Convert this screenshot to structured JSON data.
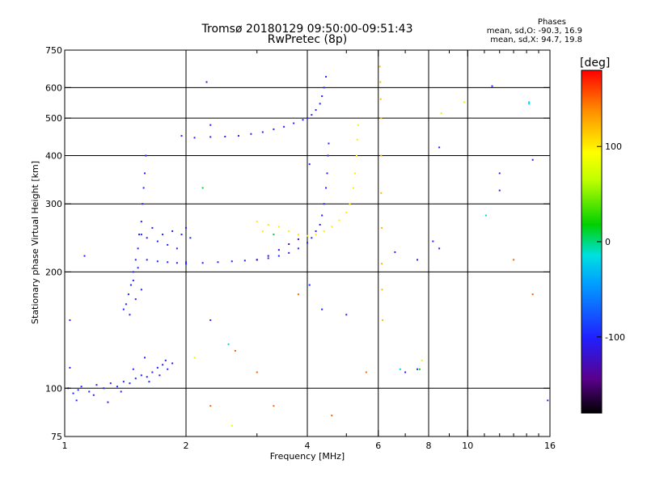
{
  "header": {
    "title_line1": "Tromsø 20180129 09:50:00-09:51:43",
    "title_line2": "RwPretec (8p)",
    "stats_title": "Phases",
    "stats_line1": "mean, sd,O: -90.3, 16.9",
    "stats_line2": "mean, sd,X:  94.7, 19.8"
  },
  "colorbar": {
    "unit": "[deg]",
    "range": [
      -180,
      180
    ],
    "ticks": [
      100,
      0,
      -100
    ],
    "tick_labels": [
      "100",
      "0",
      "-100"
    ]
  },
  "chart_data": {
    "type": "scatter",
    "xscale": "log",
    "yscale": "log",
    "xlabel": "Frequency [MHz]",
    "ylabel": "Stationary phase Virtual Height [km]",
    "xlim": [
      1,
      16
    ],
    "ylim": [
      75,
      750
    ],
    "grid": true,
    "x_ticks": [
      1,
      2,
      4,
      6,
      8,
      10,
      16
    ],
    "x_tick_labels": [
      "1",
      "2",
      "4",
      "6",
      "8",
      "10",
      "16"
    ],
    "y_ticks": [
      75,
      100,
      200,
      300,
      400,
      500,
      600,
      750
    ],
    "y_tick_labels": [
      "75",
      "100",
      "200",
      "300",
      "400",
      "500",
      "600",
      "750"
    ],
    "series": [
      {
        "phase": -100,
        "points": [
          [
            1.02,
            100
          ],
          [
            1.05,
            97
          ],
          [
            1.08,
            99
          ],
          [
            1.1,
            101
          ],
          [
            1.15,
            98
          ],
          [
            1.2,
            102
          ],
          [
            1.25,
            100
          ],
          [
            1.3,
            103
          ],
          [
            1.35,
            101
          ],
          [
            1.4,
            104
          ],
          [
            1.45,
            103
          ],
          [
            1.5,
            106
          ],
          [
            1.55,
            108
          ],
          [
            1.6,
            107
          ],
          [
            1.65,
            110
          ],
          [
            1.7,
            113
          ],
          [
            1.75,
            115
          ],
          [
            1.8,
            112
          ],
          [
            1.85,
            116
          ],
          [
            1.03,
            113
          ],
          [
            1.07,
            93
          ],
          [
            1.18,
            96
          ],
          [
            1.28,
            92
          ],
          [
            1.38,
            98
          ],
          [
            1.48,
            112
          ],
          [
            1.58,
            120
          ],
          [
            1.62,
            104
          ],
          [
            1.72,
            108
          ],
          [
            1.78,
            118
          ]
        ]
      },
      {
        "phase": -100,
        "points": [
          [
            1.4,
            160
          ],
          [
            1.42,
            165
          ],
          [
            1.44,
            175
          ],
          [
            1.46,
            185
          ],
          [
            1.48,
            200
          ],
          [
            1.5,
            215
          ],
          [
            1.52,
            230
          ],
          [
            1.53,
            250
          ],
          [
            1.55,
            270
          ],
          [
            1.56,
            300
          ],
          [
            1.57,
            330
          ],
          [
            1.58,
            360
          ],
          [
            1.59,
            400
          ],
          [
            1.45,
            155
          ],
          [
            1.5,
            170
          ],
          [
            1.55,
            180
          ],
          [
            1.48,
            190
          ],
          [
            1.52,
            205
          ]
        ]
      },
      {
        "phase": -100,
        "points": [
          [
            1.55,
            250
          ],
          [
            1.6,
            245
          ],
          [
            1.7,
            240
          ],
          [
            1.8,
            235
          ],
          [
            1.9,
            230
          ],
          [
            1.95,
            250
          ],
          [
            2.0,
            260
          ],
          [
            2.05,
            245
          ],
          [
            1.65,
            260
          ],
          [
            1.75,
            250
          ],
          [
            1.85,
            255
          ],
          [
            1.6,
            215
          ],
          [
            1.7,
            213
          ],
          [
            1.8,
            212
          ],
          [
            1.9,
            211
          ],
          [
            2.0,
            212
          ]
        ]
      },
      {
        "phase": -100,
        "points": [
          [
            2.0,
            210
          ],
          [
            2.2,
            211
          ],
          [
            2.4,
            212
          ],
          [
            2.6,
            213
          ],
          [
            2.8,
            214
          ],
          [
            3.0,
            215
          ],
          [
            3.2,
            217
          ],
          [
            3.4,
            220
          ],
          [
            3.6,
            224
          ],
          [
            3.8,
            230
          ],
          [
            4.0,
            238
          ],
          [
            4.1,
            245
          ],
          [
            4.2,
            255
          ],
          [
            4.3,
            265
          ],
          [
            4.35,
            280
          ],
          [
            4.4,
            300
          ],
          [
            4.45,
            330
          ],
          [
            4.48,
            360
          ],
          [
            4.5,
            400
          ],
          [
            4.52,
            430
          ]
        ]
      },
      {
        "phase": -100,
        "points": [
          [
            1.95,
            450
          ],
          [
            2.1,
            445
          ],
          [
            2.3,
            447
          ],
          [
            2.5,
            448
          ],
          [
            2.7,
            450
          ],
          [
            2.9,
            455
          ],
          [
            3.1,
            460
          ],
          [
            3.3,
            468
          ],
          [
            3.5,
            475
          ],
          [
            3.7,
            485
          ],
          [
            3.9,
            495
          ],
          [
            4.0,
            500
          ],
          [
            4.1,
            510
          ],
          [
            4.2,
            525
          ],
          [
            4.3,
            545
          ],
          [
            4.35,
            570
          ],
          [
            4.4,
            600
          ],
          [
            4.45,
            640
          ]
        ]
      },
      {
        "phase": -130,
        "points": [
          [
            3.0,
            215
          ],
          [
            3.2,
            220
          ],
          [
            3.4,
            228
          ],
          [
            3.6,
            236
          ],
          [
            3.8,
            243
          ]
        ]
      },
      {
        "phase": 100,
        "points": [
          [
            3.2,
            265
          ],
          [
            3.4,
            262
          ],
          [
            3.6,
            255
          ],
          [
            3.8,
            250
          ],
          [
            4.0,
            248
          ],
          [
            4.2,
            250
          ],
          [
            4.4,
            255
          ],
          [
            4.6,
            262
          ],
          [
            4.8,
            272
          ],
          [
            5.0,
            285
          ],
          [
            5.1,
            300
          ],
          [
            5.2,
            330
          ],
          [
            5.25,
            360
          ],
          [
            5.3,
            400
          ],
          [
            5.32,
            440
          ],
          [
            5.35,
            480
          ],
          [
            3.0,
            270
          ],
          [
            3.1,
            255
          ]
        ]
      },
      {
        "phase": 120,
        "points": [
          [
            6.05,
            680
          ],
          [
            6.07,
            620
          ],
          [
            6.08,
            560
          ],
          [
            6.1,
            500
          ],
          [
            6.1,
            400
          ],
          [
            6.1,
            320
          ],
          [
            6.12,
            260
          ],
          [
            6.12,
            210
          ],
          [
            6.13,
            180
          ],
          [
            6.15,
            150
          ]
        ]
      },
      {
        "phase": -100,
        "points": [
          [
            2.25,
            620
          ],
          [
            2.3,
            480
          ],
          [
            4.05,
            380
          ],
          [
            6.6,
            225
          ],
          [
            7.5,
            215
          ],
          [
            8.2,
            240
          ],
          [
            8.5,
            420
          ],
          [
            8.5,
            230
          ],
          [
            11.5,
            605
          ],
          [
            12.0,
            360
          ],
          [
            12.0,
            325
          ],
          [
            14.5,
            390
          ],
          [
            7.0,
            110
          ],
          [
            7.5,
            112
          ],
          [
            15.8,
            93
          ],
          [
            4.05,
            185
          ],
          [
            4.35,
            160
          ],
          [
            5.0,
            155
          ],
          [
            2.3,
            150
          ],
          [
            1.03,
            150
          ],
          [
            1.12,
            220
          ]
        ]
      },
      {
        "phase": 10,
        "points": [
          [
            2.2,
            330
          ],
          [
            7.6,
            112
          ],
          [
            3.3,
            250
          ]
        ]
      },
      {
        "phase": 150,
        "points": [
          [
            4.6,
            85
          ],
          [
            2.65,
            125
          ],
          [
            3.0,
            110
          ],
          [
            3.8,
            175
          ],
          [
            5.6,
            110
          ],
          [
            13.0,
            215
          ],
          [
            14.5,
            175
          ],
          [
            2.3,
            90
          ],
          [
            3.3,
            90
          ]
        ]
      },
      {
        "phase": -20,
        "points": [
          [
            6.8,
            112
          ],
          [
            11.1,
            280
          ],
          [
            14.2,
            550
          ],
          [
            14.2,
            545
          ],
          [
            2.55,
            130
          ]
        ]
      },
      {
        "phase": 80,
        "points": [
          [
            8.6,
            515
          ],
          [
            9.8,
            550
          ],
          [
            7.7,
            118
          ],
          [
            2.1,
            120
          ],
          [
            2.6,
            80
          ]
        ]
      }
    ]
  }
}
